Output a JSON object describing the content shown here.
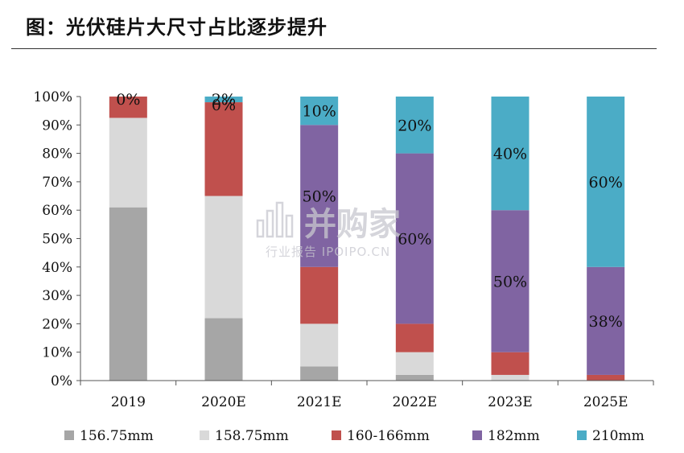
{
  "title": "图：光伏硅片大尺寸占比逐步提升",
  "watermark": {
    "brand": "并购家",
    "site": "行业报告 IPOIPO.CN",
    "icon": "bar-chart-logo-icon"
  },
  "chart_data": {
    "type": "bar",
    "stacked": true,
    "categories": [
      "2019",
      "2020E",
      "2021E",
      "2022E",
      "2023E",
      "2025E"
    ],
    "y_ticks": [
      "0%",
      "10%",
      "20%",
      "30%",
      "40%",
      "50%",
      "60%",
      "70%",
      "80%",
      "90%",
      "100%"
    ],
    "ylim": [
      0,
      100
    ],
    "legend_position": "bottom",
    "series": [
      {
        "name": "156.75mm",
        "color": "#a6a6a6",
        "values": [
          61,
          22,
          5,
          2,
          0,
          0
        ]
      },
      {
        "name": "158.75mm",
        "color": "#d9d9d9",
        "values": [
          31.5,
          43,
          15,
          8,
          2,
          0
        ]
      },
      {
        "name": "160-166mm",
        "color": "#c0504d",
        "values": [
          7.5,
          33,
          20,
          10,
          8,
          2
        ]
      },
      {
        "name": "182mm",
        "color": "#8064a2",
        "values": [
          0,
          0,
          50,
          60,
          50,
          38
        ]
      },
      {
        "name": "210mm",
        "color": "#4bacc6",
        "values": [
          0,
          2,
          10,
          20,
          40,
          60
        ]
      }
    ],
    "data_labels": [
      {
        "category": "2019",
        "series": "182mm",
        "text": "0%"
      },
      {
        "category": "2020E",
        "series": "182mm",
        "text": "0%"
      },
      {
        "category": "2020E",
        "series": "210mm",
        "text": "2%"
      },
      {
        "category": "2021E",
        "series": "210mm",
        "text": "10%"
      },
      {
        "category": "2021E",
        "series": "182mm",
        "text": "50%"
      },
      {
        "category": "2022E",
        "series": "210mm",
        "text": "20%"
      },
      {
        "category": "2022E",
        "series": "182mm",
        "text": "60%"
      },
      {
        "category": "2023E",
        "series": "210mm",
        "text": "40%"
      },
      {
        "category": "2023E",
        "series": "182mm",
        "text": "50%"
      },
      {
        "category": "2025E",
        "series": "210mm",
        "text": "60%"
      },
      {
        "category": "2025E",
        "series": "182mm",
        "text": "38%"
      }
    ]
  }
}
